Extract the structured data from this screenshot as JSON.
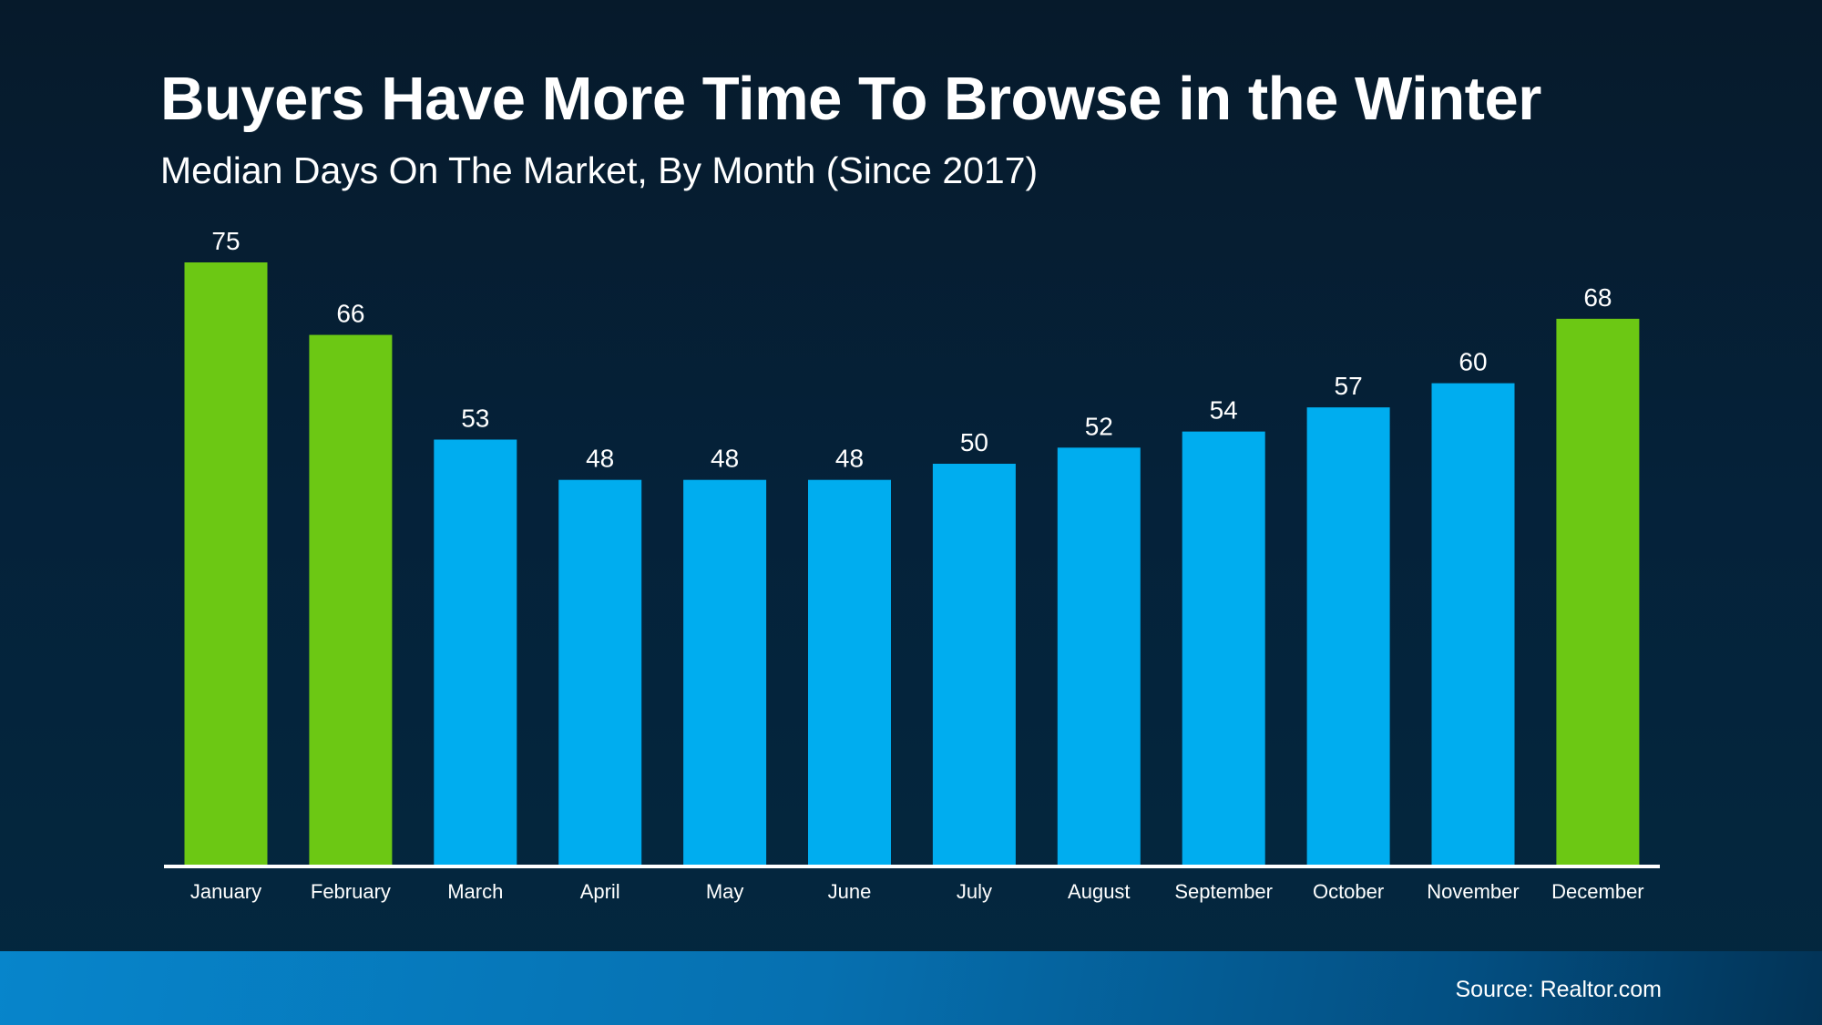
{
  "chart_data": {
    "type": "bar",
    "title": "Buyers Have More Time To Browse in the Winter",
    "subtitle": "Median Days On The Market, By Month (Since 2017)",
    "xlabel": "",
    "ylabel": "",
    "ylim": [
      0,
      75
    ],
    "grid": false,
    "categories": [
      "January",
      "February",
      "March",
      "April",
      "May",
      "June",
      "July",
      "August",
      "September",
      "October",
      "November",
      "December"
    ],
    "values": [
      75,
      66,
      53,
      48,
      48,
      48,
      50,
      52,
      54,
      57,
      60,
      68
    ],
    "highlight": [
      true,
      true,
      false,
      false,
      false,
      false,
      false,
      false,
      false,
      false,
      false,
      true
    ],
    "colors": {
      "highlight": "#6cc814",
      "normal": "#00adef",
      "axis": "#ffffff",
      "label": "#ffffff"
    },
    "source": "Source: Realtor.com"
  }
}
